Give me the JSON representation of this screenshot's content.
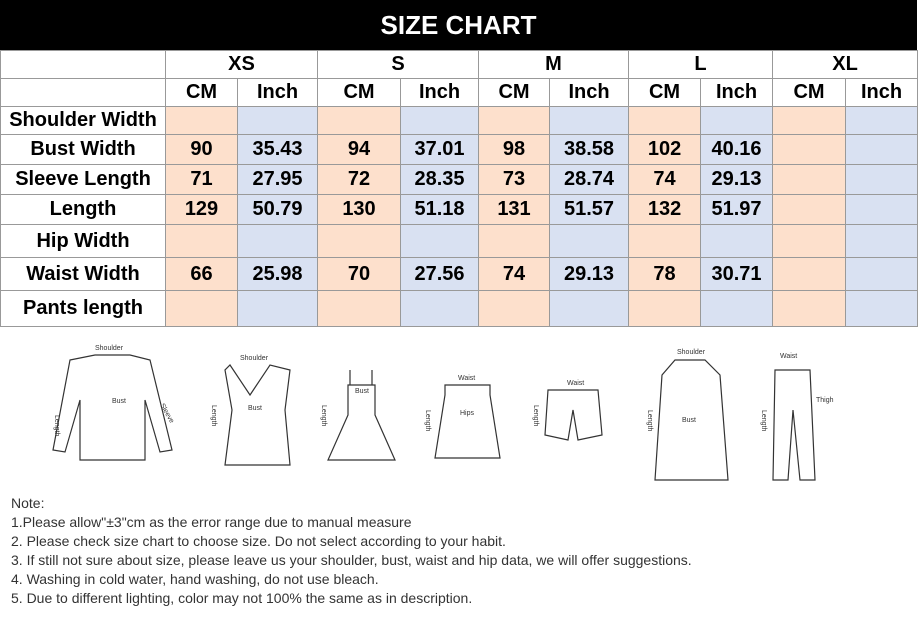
{
  "header": {
    "title": "SIZE CHART"
  },
  "table": {
    "sizes": [
      {
        "name": "XS",
        "units": [
          "CM",
          "Inch"
        ]
      },
      {
        "name": "S",
        "units": [
          "CM",
          "Inch"
        ]
      },
      {
        "name": "M",
        "units": [
          "CM",
          "Inch"
        ]
      },
      {
        "name": "L",
        "units": [
          "CM",
          "Inch"
        ]
      },
      {
        "name": "XL",
        "units": [
          "CM",
          "Inch"
        ]
      }
    ],
    "rows": [
      {
        "label": "Shoulder Width",
        "cells": [
          null,
          null,
          null,
          null,
          null,
          null,
          null,
          null,
          null,
          null
        ]
      },
      {
        "label": "Bust Width",
        "cells": [
          90,
          35.43,
          94,
          37.01,
          98,
          38.58,
          102,
          40.16,
          null,
          null
        ]
      },
      {
        "label": "Sleeve Length",
        "cells": [
          71,
          27.95,
          72,
          28.35,
          73,
          28.74,
          74,
          29.13,
          null,
          null
        ]
      },
      {
        "label": "Length",
        "cells": [
          129,
          50.79,
          130,
          51.18,
          131,
          51.57,
          132,
          51.97,
          null,
          null
        ]
      },
      {
        "label": "Hip Width",
        "cells": [
          null,
          null,
          null,
          null,
          null,
          null,
          null,
          null,
          null,
          null
        ]
      },
      {
        "label": "Waist Width",
        "cells": [
          66,
          25.98,
          70,
          27.56,
          74,
          29.13,
          78,
          30.71,
          null,
          null
        ]
      },
      {
        "label": "Pants length",
        "cells": [
          null,
          null,
          null,
          null,
          null,
          null,
          null,
          null,
          null,
          null
        ]
      }
    ]
  },
  "figures": [
    {
      "labels": [
        "Shoulder",
        "Length",
        "Bust",
        "Sleeve"
      ]
    },
    {
      "labels": [
        "Shoulder",
        "Length",
        "Bust"
      ]
    },
    {
      "labels": [
        "Bust",
        "Length"
      ]
    },
    {
      "labels": [
        "Waist",
        "Length",
        "Hips"
      ]
    },
    {
      "labels": [
        "Waist",
        "Length"
      ]
    },
    {
      "labels": [
        "Shoulder",
        "Bust",
        "Length"
      ]
    },
    {
      "labels": [
        "Waist",
        "Length",
        "Thigh"
      ]
    }
  ],
  "notes": {
    "heading": "Note:",
    "items": [
      "1.Please allow\"±3\"cm as the error range due to manual measure",
      "2. Please check size chart to choose size. Do not select according to your habit.",
      "3. If still not sure about size, please leave us your shoulder, bust, waist and hip data, we will offer suggestions.",
      "4. Washing in cold water, hand washing, do not use bleach.",
      "5. Due to different lighting, color may not 100% the same as in description."
    ]
  }
}
